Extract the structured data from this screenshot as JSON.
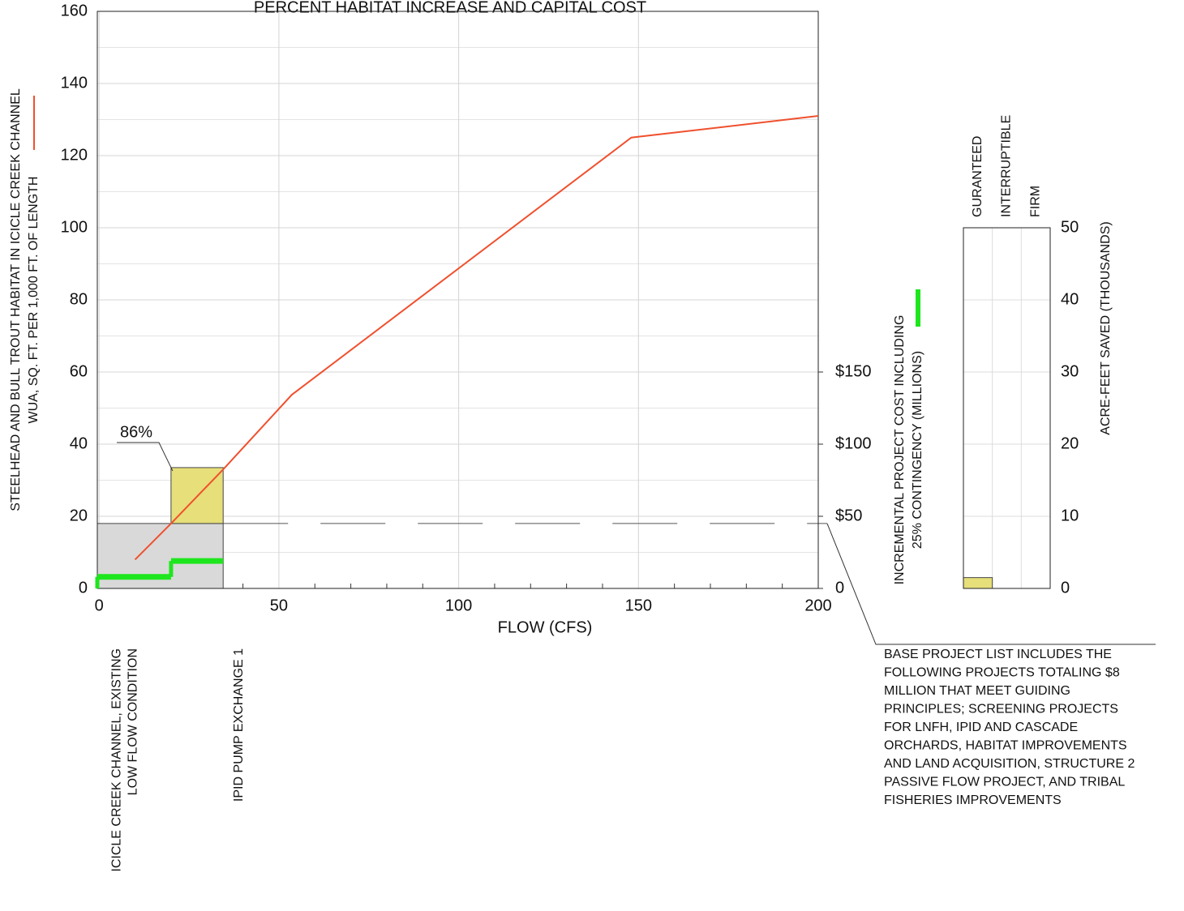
{
  "chart_data": [
    {
      "type": "line",
      "title": "PERCENT HABITAT INCREASE AND CAPITAL COST",
      "xlabel": "FLOW (CFS)",
      "ylabel": [
        "STEELHEAD AND BULL TROUT HABITAT IN ICICLE CREEK CHANNEL",
        "WUA, SQ. FT. PER 1,000 FT. OF LENGTH"
      ],
      "y2label": [
        "INCREMENTAL PROJECT COST INCLUDING",
        "25% CONTINGENCY (MILLIONS)"
      ],
      "xlim": [
        -0.5,
        200
      ],
      "xticks": [
        0,
        50,
        100,
        150,
        200
      ],
      "xminorticks": [
        10,
        20,
        30,
        40,
        60,
        70,
        80,
        90,
        110,
        120,
        130,
        140,
        160,
        170,
        180,
        190
      ],
      "ylim": [
        0,
        160
      ],
      "yticks": [
        0,
        20,
        40,
        60,
        80,
        100,
        120,
        140,
        160
      ],
      "yminorticks": [
        10,
        30,
        50,
        70,
        90,
        110,
        130,
        150
      ],
      "y2lim": [
        0,
        400
      ],
      "y2ticks": [
        0,
        {
          "value": 50,
          "label": "$50"
        },
        {
          "value": 100,
          "label": "$100"
        },
        {
          "value": 150,
          "label": "$150"
        }
      ],
      "grid": true,
      "series": [
        {
          "color": "#f0502e",
          "x": [
            10,
            20,
            34.5,
            53.6,
            148,
            200
          ],
          "values": [
            8,
            18,
            33,
            53.7,
            125,
            131
          ]
        }
      ],
      "cost_steps": {
        "color": "#1ee61e",
        "axis": "y2",
        "bins": [
          -0.5,
          20,
          34.5
        ],
        "values": [
          8,
          19
        ]
      },
      "boxes": [
        {
          "x": [
            -0.5,
            34.5
          ],
          "value": 18,
          "color": "#d9d9d9"
        },
        {
          "x": [
            20,
            34.5
          ],
          "value": 15.5,
          "color": "#e6df7a",
          "label": "86%"
        }
      ],
      "flow_labels": [
        {
          "x": 0,
          "lines": [
            "ICICLE CREEK CHANNEL, EXISTING",
            "LOW FLOW CONDITION"
          ]
        },
        {
          "x": 20,
          "lines": [
            "IPID PUMP EXCHANGE 1"
          ]
        }
      ],
      "note": [
        "BASE PROJECT LIST INCLUDES THE",
        "FOLLOWING PROJECTS TOTALING $8",
        "MILLION THAT MEET GUIDING",
        "PRINCIPLES; SCREENING PROJECTS",
        "FOR LNFH, IPID AND CASCADE",
        "ORCHARDS, HABITAT IMPROVEMENTS",
        "AND LAND ACQUISITION, STRUCTURE 2",
        "PASSIVE FLOW PROJECT, AND TRIBAL",
        "FISHERIES IMPROVEMENTS"
      ]
    },
    {
      "type": "bar",
      "ylabel": "ACRE-FEET SAVED (THOUSANDS)",
      "categories": [
        "GURANTEED",
        "INTERRUPTIBLE",
        "FIRM"
      ],
      "values": [
        1.5,
        0,
        0
      ],
      "color": "#e6df7a",
      "ylim": [
        0,
        50
      ],
      "yticks": [
        0,
        10,
        20,
        30,
        40,
        50
      ],
      "grid": true
    }
  ]
}
